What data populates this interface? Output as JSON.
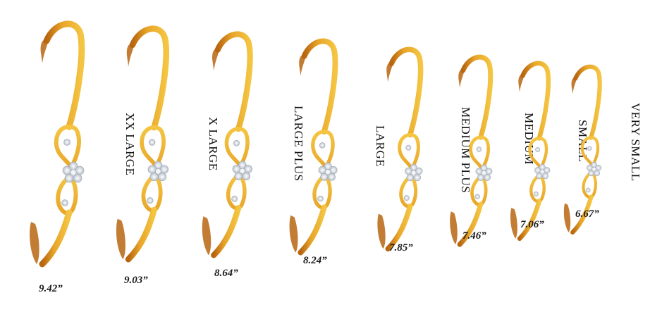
{
  "bracelets": [
    {
      "label": "XX LARGE",
      "measure": "9.42”"
    },
    {
      "label": "X LARGE",
      "measure": "9.03”"
    },
    {
      "label": "LARGE PLUS",
      "measure": "8.64”"
    },
    {
      "label": "LARGE",
      "measure": "8.24”"
    },
    {
      "label": "MEDIUM PLUS",
      "measure": "7.85”"
    },
    {
      "label": "MEDIUM",
      "measure": "7.46”"
    },
    {
      "label": "SMALL",
      "measure": "7.06”"
    },
    {
      "label": "VERY SMALL",
      "measure": "6.67”"
    }
  ],
  "colors": {
    "gold_light": "#f4c542",
    "gold_mid": "#e8a62a",
    "gold_dark": "#b8650f",
    "diamond": "#e9edf2",
    "text": "#111111"
  }
}
